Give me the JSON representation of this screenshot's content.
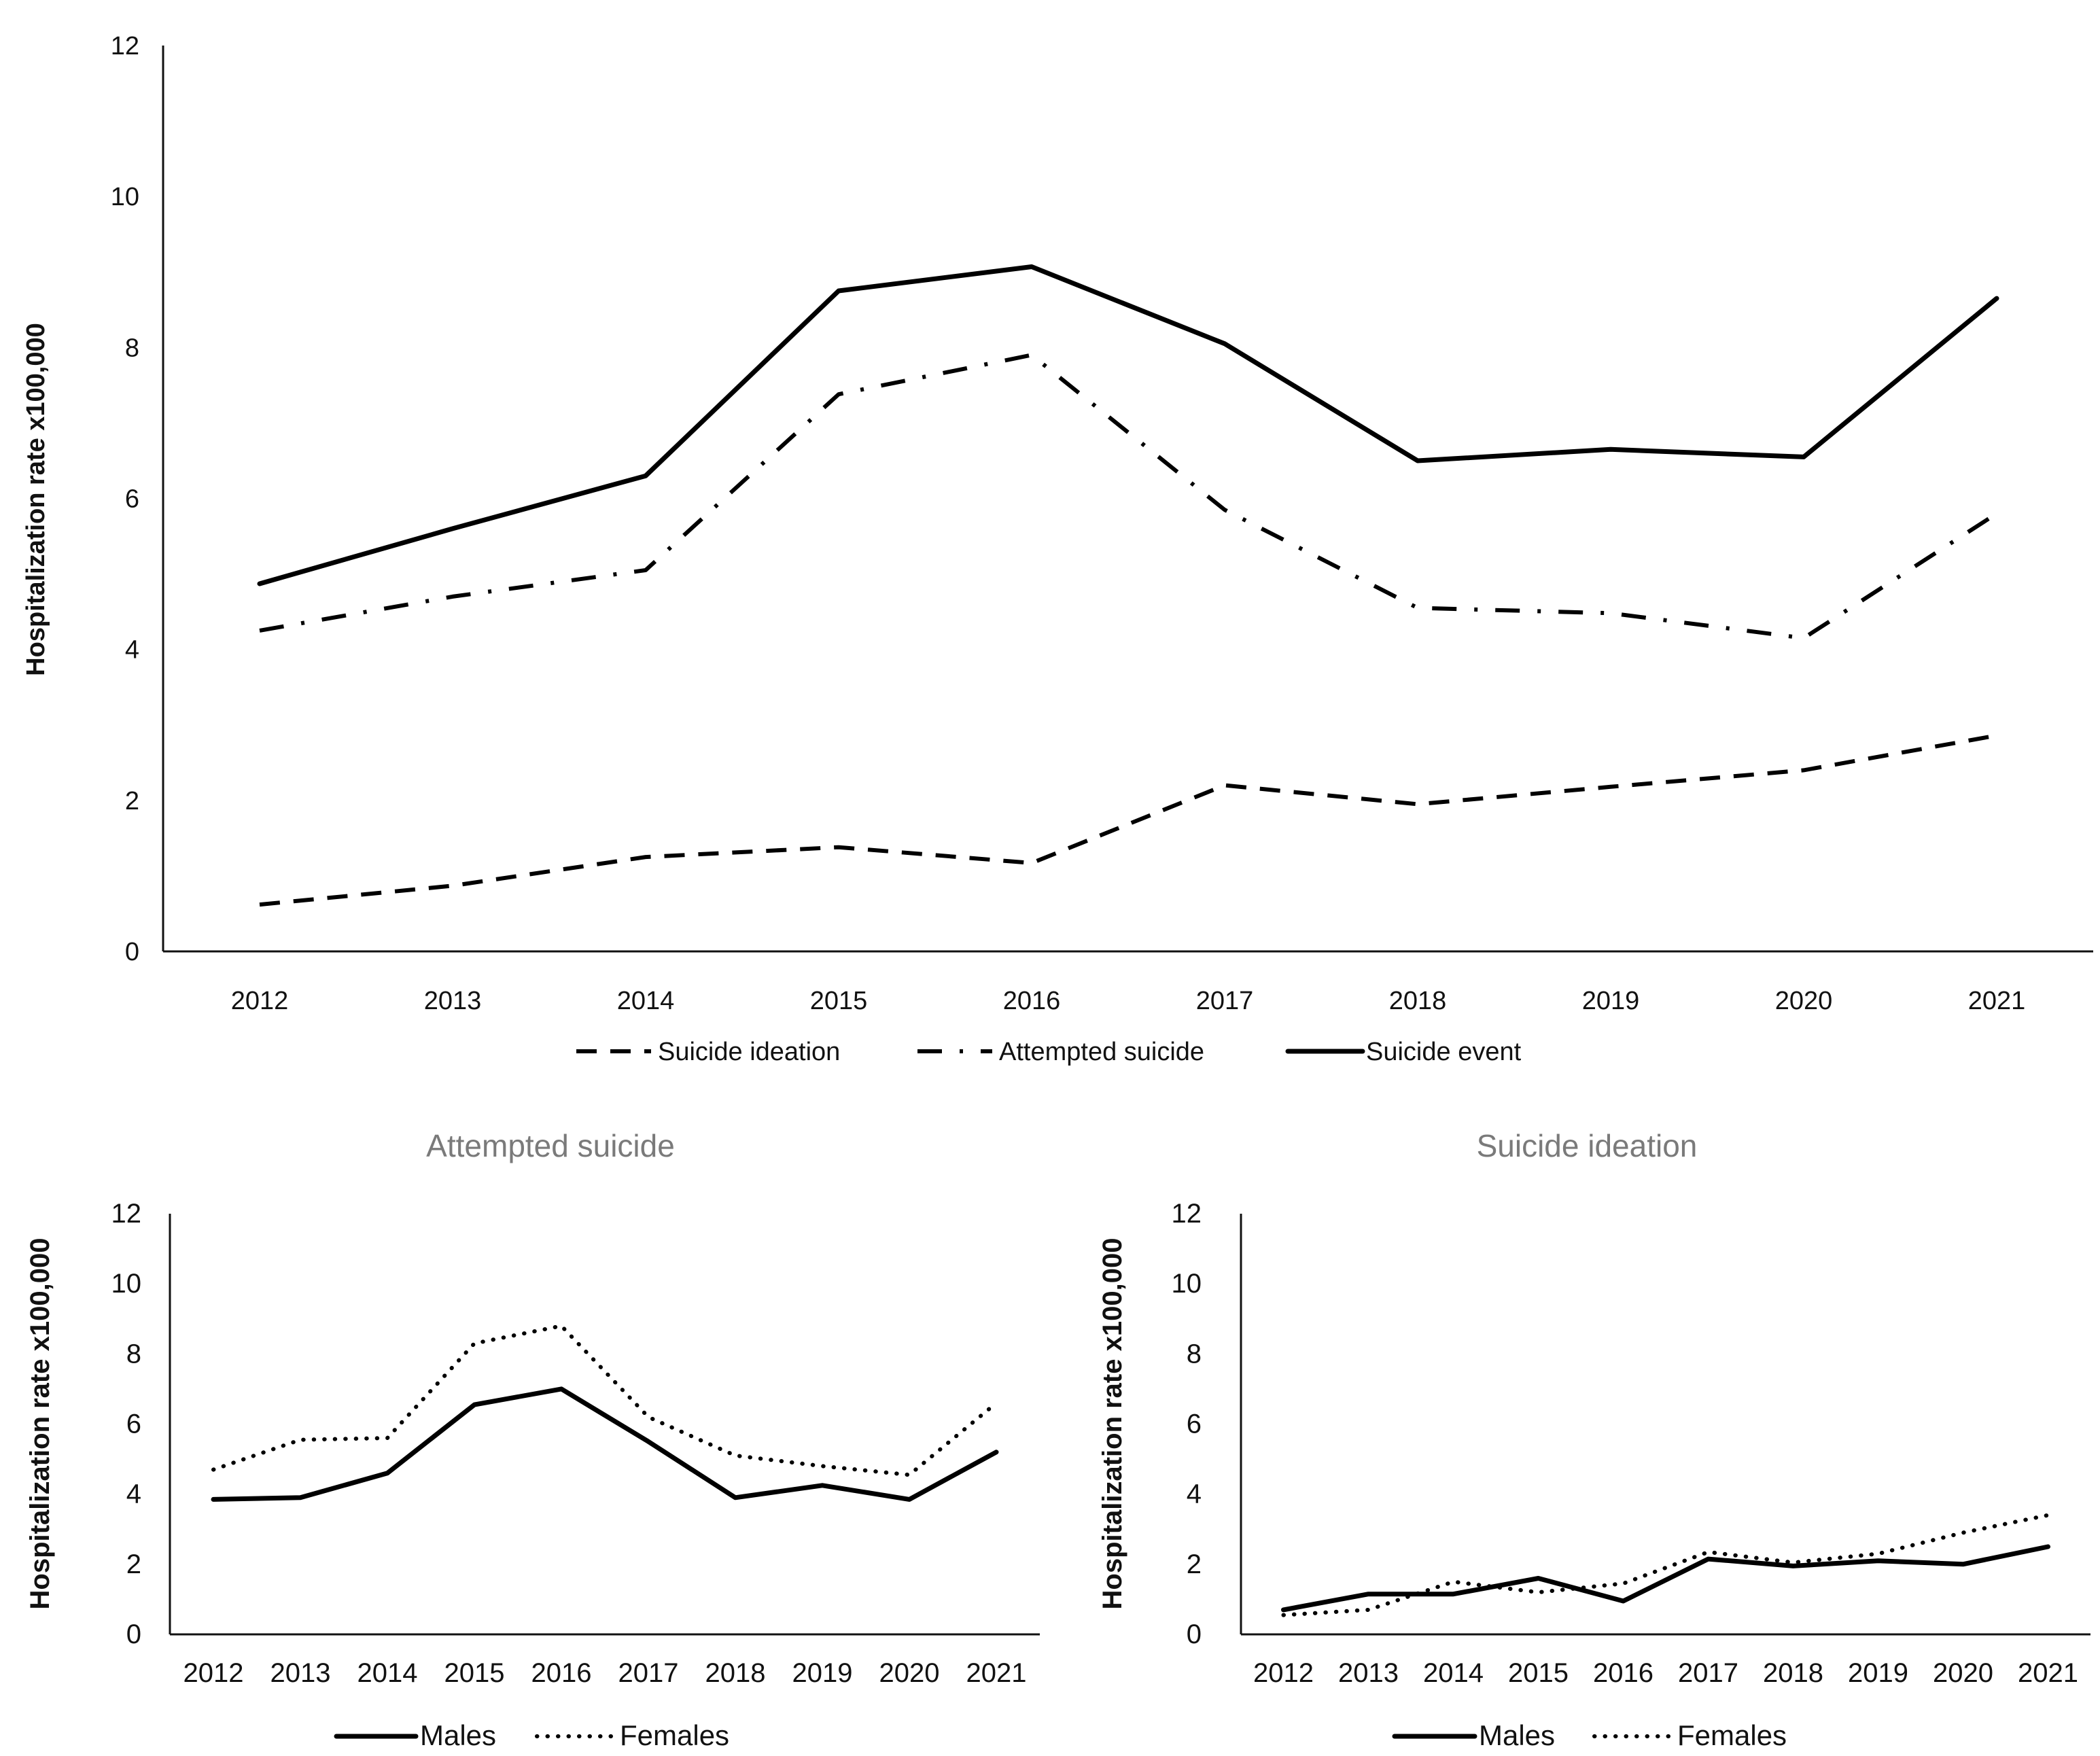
{
  "colors": {
    "line": "#000000",
    "axis": "#111111",
    "subtitle": "#7a7a7a",
    "background": "#ffffff"
  },
  "chart_data": [
    {
      "type": "line",
      "title": "",
      "xlabel": "",
      "ylabel": "Hospitalization rate  x100,000",
      "ylim": [
        0,
        12
      ],
      "yticks": [
        "0",
        "2",
        "4",
        "6",
        "8",
        "10",
        "12"
      ],
      "categories": [
        "2012",
        "2013",
        "2014",
        "2015",
        "2016",
        "2017",
        "2018",
        "2019",
        "2020",
        "2021"
      ],
      "legend_position": "bottom",
      "series": [
        {
          "name": "Suicide ideation",
          "style": "dashed",
          "values": [
            0.62,
            0.87,
            1.25,
            1.38,
            1.17,
            2.2,
            1.95,
            2.18,
            2.4,
            2.86
          ]
        },
        {
          "name": "Attempted suicide",
          "style": "dash-dot",
          "values": [
            4.25,
            4.7,
            5.05,
            7.38,
            7.9,
            5.85,
            4.55,
            4.48,
            4.15,
            5.8
          ]
        },
        {
          "name": "Suicide event",
          "style": "solid",
          "values": [
            4.87,
            5.6,
            6.3,
            8.75,
            9.07,
            8.05,
            6.5,
            6.65,
            6.55,
            8.65
          ]
        }
      ]
    },
    {
      "type": "line",
      "title": "Attempted suicide",
      "xlabel": "",
      "ylabel": "Hospitalization rate  x100,000",
      "ylim": [
        0,
        12
      ],
      "yticks": [
        "0",
        "2",
        "4",
        "6",
        "8",
        "10",
        "12"
      ],
      "categories": [
        "2012",
        "2013",
        "2014",
        "2015",
        "2016",
        "2017",
        "2018",
        "2019",
        "2020",
        "2021"
      ],
      "legend_position": "bottom",
      "series": [
        {
          "name": "Males",
          "style": "solid",
          "values": [
            3.85,
            3.9,
            4.6,
            6.55,
            7.0,
            5.5,
            3.9,
            4.25,
            3.85,
            5.2
          ]
        },
        {
          "name": "Females",
          "style": "dotted",
          "values": [
            4.7,
            5.55,
            5.6,
            8.3,
            8.8,
            6.2,
            5.1,
            4.8,
            4.55,
            6.6
          ]
        }
      ]
    },
    {
      "type": "line",
      "title": "Suicide ideation",
      "xlabel": "",
      "ylabel": "Hospitalization rate  x100,000",
      "ylim": [
        0,
        12
      ],
      "yticks": [
        "0",
        "2",
        "4",
        "6",
        "8",
        "10",
        "12"
      ],
      "categories": [
        "2012",
        "2013",
        "2014",
        "2015",
        "2016",
        "2017",
        "2018",
        "2019",
        "2020",
        "2021"
      ],
      "legend_position": "bottom",
      "series": [
        {
          "name": "Males",
          "style": "solid",
          "values": [
            0.7,
            1.15,
            1.15,
            1.6,
            0.95,
            2.15,
            1.95,
            2.1,
            2.0,
            2.5
          ]
        },
        {
          "name": "Females",
          "style": "dotted",
          "values": [
            0.55,
            0.7,
            1.5,
            1.2,
            1.45,
            2.35,
            2.05,
            2.3,
            2.9,
            3.4
          ]
        }
      ]
    }
  ]
}
